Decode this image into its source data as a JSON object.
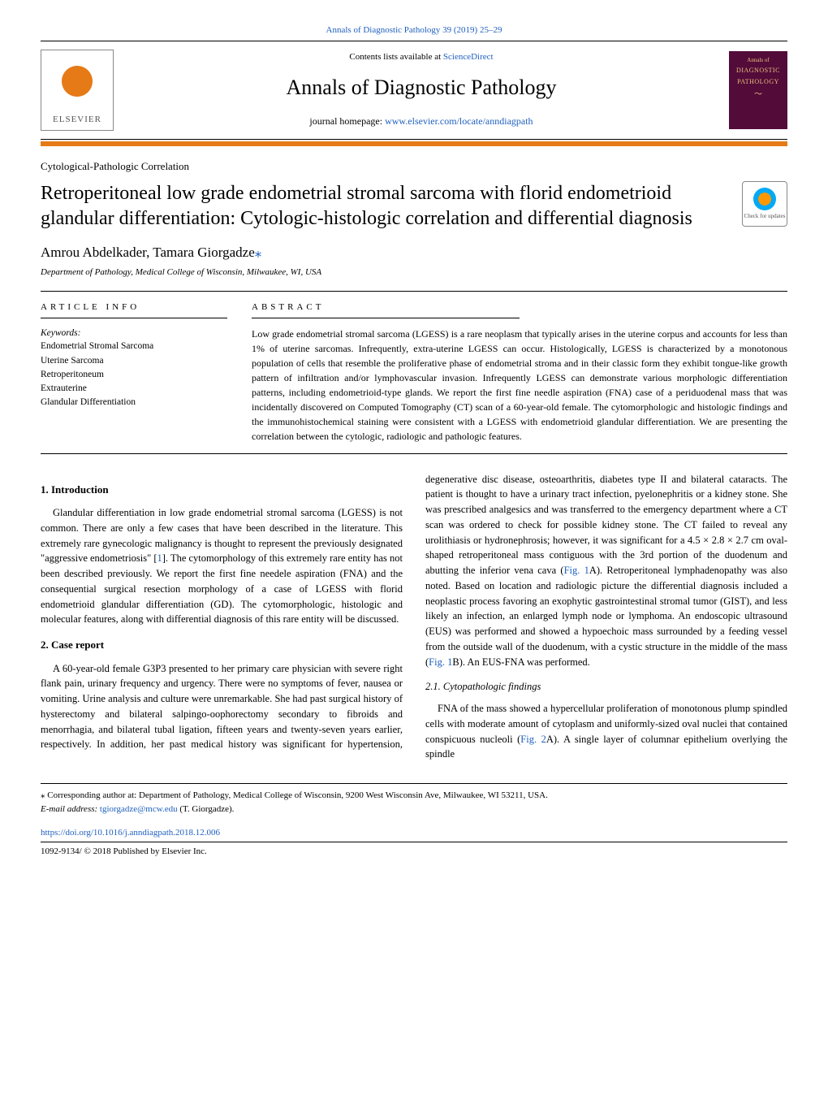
{
  "top_link": "Annals of Diagnostic Pathology 39 (2019) 25–29",
  "header": {
    "elsevier": "ELSEVIER",
    "contents_prefix": "Contents lists available at ",
    "contents_link": "ScienceDirect",
    "journal_title": "Annals of Diagnostic Pathology",
    "homepage_prefix": "journal homepage: ",
    "homepage_url": "www.elsevier.com/locate/anndiagpath",
    "cover": {
      "line1": "Annals of",
      "line2": "DIAGNOSTIC",
      "line3": "PATHOLOGY"
    }
  },
  "article_type": "Cytological-Pathologic Correlation",
  "article_title": "Retroperitoneal low grade endometrial stromal sarcoma with florid endometrioid glandular differentiation: Cytologic-histologic correlation and differential diagnosis",
  "updates_badge": "Check for updates",
  "authors": "Amrou Abdelkader, Tamara Giorgadze",
  "affiliation": "Department of Pathology, Medical College of Wisconsin, Milwaukee, WI, USA",
  "info_heading": "ARTICLE INFO",
  "abstract_heading": "ABSTRACT",
  "keywords_label": "Keywords:",
  "keywords": [
    "Endometrial Stromal Sarcoma",
    "Uterine Sarcoma",
    "Retroperitoneum",
    "Extrauterine",
    "Glandular Differentiation"
  ],
  "abstract": "Low grade endometrial stromal sarcoma (LGESS) is a rare neoplasm that typically arises in the uterine corpus and accounts for less than 1% of uterine sarcomas. Infrequently, extra-uterine LGESS can occur. Histologically, LGESS is characterized by a monotonous population of cells that resemble the proliferative phase of endometrial stroma and in their classic form they exhibit tongue-like growth pattern of infiltration and/or lymphovascular invasion. Infrequently LGESS can demonstrate various morphologic differentiation patterns, including endometrioid-type glands. We report the first fine needle aspiration (FNA) case of a periduodenal mass that was incidentally discovered on Computed Tomography (CT) scan of a 60-year-old female. The cytomorphologic and histologic findings and the immunohistochemical staining were consistent with a LGESS with endometrioid glandular differentiation. We are presenting the correlation between the cytologic, radiologic and pathologic features.",
  "sections": {
    "intro_h": "1. Introduction",
    "intro_p": "Glandular differentiation in low grade endometrial stromal sarcoma (LGESS) is not common. There are only a few cases that have been described in the literature. This extremely rare gynecologic malignancy is thought to represent the previously designated \"aggressive endometriosis\" [",
    "intro_ref": "1",
    "intro_p2": "]. The cytomorphology of this extremely rare entity has not been described previously. We report the first fine needele aspiration (FNA) and the consequential surgical resection morphology of a case of LGESS with florid endometrioid glandular differentiation (GD). The cytomorphologic, histologic and molecular features, along with differential diagnosis of this rare entity will be discussed.",
    "case_h": "2. Case report",
    "case_p1": "A 60-year-old female G3P3 presented to her primary care physician with severe right flank pain, urinary frequency and urgency. There were no symptoms of fever, nausea or vomiting. Urine analysis and culture were unremarkable. She had past surgical history of hysterectomy and bilateral salpingo-oophorectomy secondary to fibroids and menorrhagia, and bilateral tubal ligation, fifteen years and twenty-seven years earlier, respectively. In addition, her past medical history was significant for hypertension, degenerative disc disease, osteoarthritis, diabetes type II and bilateral cataracts. The patient is thought to have a urinary tract infection, pyelonephritis or a kidney stone. She was prescribed analgesics and was transferred to the emergency department where a CT scan was ordered to check for possible kidney stone. The CT failed to reveal any urolithiasis or hydronephrosis; however, it was significant for a 4.5 × 2.8 × 2.7 cm oval-shaped retroperitoneal mass contiguous with the 3rd portion of the duodenum and abutting the inferior vena cava (",
    "case_fig1a": "Fig. 1",
    "case_p1b": "A). Retroperitoneal lymphadenopathy was also noted. Based on location and radiologic picture the differential diagnosis included a neoplastic process favoring an exophytic gastrointestinal stromal tumor (GIST), and less likely an infection, an enlarged lymph node or lymphoma. An endoscopic ultrasound (EUS) was performed and showed a hypoechoic mass surrounded by a feeding vessel from the outside wall of the duodenum, with a cystic structure in the middle of the mass (",
    "case_fig1b": "Fig. 1",
    "case_p1c": "B). An EUS-FNA was performed.",
    "cyto_h": "2.1. Cytopathologic findings",
    "cyto_p1": "FNA of the mass showed a hypercellular proliferation of monotonous plump spindled cells with moderate amount of cytoplasm and uniformly-sized oval nuclei that contained conspicuous nucleoli (",
    "cyto_fig2": "Fig. 2",
    "cyto_p1b": "A). A single layer of columnar epithelium overlying the spindle"
  },
  "footnote": {
    "corr": "⁎ Corresponding author at: Department of Pathology, Medical College of Wisconsin, 9200 West Wisconsin Ave, Milwaukee, WI 53211, USA.",
    "email_label": "E-mail address: ",
    "email": "tgiorgadze@mcw.edu",
    "email_suffix": " (T. Giorgadze)."
  },
  "doi": "https://doi.org/10.1016/j.anndiagpath.2018.12.006",
  "copyright": "1092-9134/ © 2018 Published by Elsevier Inc.",
  "colors": {
    "link": "#2060c0",
    "accent": "#e67a17",
    "journal_bg": "#530b3a",
    "journal_fg": "#e9c07a"
  }
}
